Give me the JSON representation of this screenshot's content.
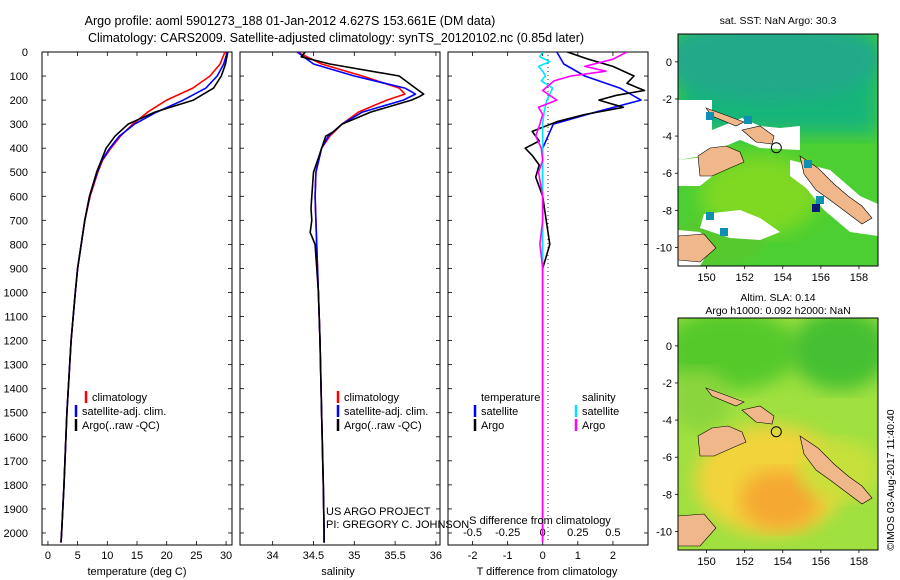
{
  "title": {
    "line1": "Argo profile: aoml 5901273_188 01-Jan-2012 4.627S 153.661E (DM data)",
    "line2": "Climatology: CARS2009. Satellite-adjusted climatology: synTS_20120102.nc (0.85d later)"
  },
  "colors": {
    "climatology": "#ff0000",
    "satellite": "#0000ff",
    "argo": "#000000",
    "argo_salinity_diff": "#ff00ff",
    "satellite_salinity_diff": "#00e5ff"
  },
  "credits": {
    "project": "US ARGO PROJECT",
    "pi": "PI: GREGORY C. JOHNSON",
    "timestamp": "©IMOS 03-Aug-2017 11:40:40"
  },
  "chart_data": [
    {
      "id": "temperature",
      "type": "line",
      "xlabel": "temperature (deg C)",
      "ylabel": "",
      "xlim": [
        -1,
        31
      ],
      "ylim": [
        2050,
        0
      ],
      "xticks": [
        0,
        5,
        10,
        15,
        20,
        25,
        30
      ],
      "yticks": [
        0,
        100,
        200,
        300,
        400,
        500,
        600,
        700,
        800,
        900,
        1000,
        1100,
        1200,
        1300,
        1400,
        1500,
        1600,
        1700,
        1800,
        1900,
        2000
      ],
      "legend": [
        "climatology",
        "satellite-adj. clim.",
        "Argo(..raw -QC)"
      ],
      "legend_position": "bottom-center",
      "series": [
        {
          "name": "climatology",
          "color_key": "climatology",
          "depth": [
            0,
            50,
            100,
            150,
            200,
            250,
            300,
            350,
            400,
            450,
            500,
            600,
            700,
            800,
            900,
            1000,
            1200,
            1500,
            1800,
            2000,
            2040
          ],
          "values": [
            29.8,
            29.0,
            27.3,
            24.4,
            20.0,
            16.8,
            14.3,
            12.2,
            10.6,
            9.2,
            8.4,
            7.1,
            6.2,
            5.6,
            5.0,
            4.6,
            3.9,
            3.2,
            2.7,
            2.3,
            2.2
          ]
        },
        {
          "name": "satellite-adj. clim.",
          "color_key": "satellite",
          "depth": [
            0,
            50,
            100,
            150,
            200,
            250,
            300,
            350,
            400,
            450,
            500,
            600,
            700,
            800,
            900,
            1000,
            1200,
            1500,
            1800,
            2000,
            2040
          ],
          "values": [
            30.2,
            29.6,
            28.5,
            26.6,
            22.8,
            18.3,
            14.6,
            12.0,
            10.4,
            9.1,
            8.3,
            7.0,
            6.2,
            5.6,
            5.0,
            4.6,
            3.9,
            3.2,
            2.7,
            2.3,
            2.2
          ]
        },
        {
          "name": "Argo(..raw -QC)",
          "color_key": "argo",
          "depth": [
            0,
            50,
            100,
            150,
            200,
            250,
            300,
            350,
            400,
            450,
            500,
            600,
            700,
            800,
            900,
            1000,
            1200,
            1500,
            1800,
            2000,
            2040
          ],
          "values": [
            30.3,
            29.9,
            29.2,
            27.9,
            24.5,
            18.0,
            13.5,
            11.3,
            9.8,
            9.0,
            8.2,
            7.0,
            6.2,
            5.6,
            5.0,
            4.6,
            3.9,
            3.2,
            2.7,
            2.3,
            2.2
          ]
        }
      ]
    },
    {
      "id": "salinity",
      "type": "line",
      "xlabel": "salinity",
      "ylabel": "",
      "xlim": [
        33.6,
        36.05
      ],
      "ylim": [
        2050,
        0
      ],
      "xticks": [
        34,
        34.5,
        35,
        35.5,
        36
      ],
      "legend": [
        "climatology",
        "satellite-adj. clim.",
        "Argo(..raw -QC)"
      ],
      "legend_position": "bottom-center",
      "series": [
        {
          "name": "climatology",
          "color_key": "climatology",
          "depth": [
            0,
            50,
            100,
            150,
            175,
            200,
            250,
            300,
            350,
            400,
            500,
            600,
            700,
            800,
            1000,
            1200,
            1500,
            1800,
            2000,
            2040
          ],
          "values": [
            34.3,
            34.6,
            35.1,
            35.55,
            35.62,
            35.4,
            35.05,
            34.85,
            34.7,
            34.6,
            34.53,
            34.52,
            34.53,
            34.54,
            34.56,
            34.58,
            34.6,
            34.62,
            34.63,
            34.63
          ]
        },
        {
          "name": "satellite-adj. clim.",
          "color_key": "satellite",
          "depth": [
            0,
            50,
            100,
            150,
            175,
            200,
            250,
            300,
            350,
            400,
            500,
            600,
            700,
            800,
            1000,
            1200,
            1500,
            1800,
            2000,
            2040
          ],
          "values": [
            34.3,
            34.5,
            35.0,
            35.62,
            35.75,
            35.6,
            35.1,
            34.85,
            34.68,
            34.6,
            34.53,
            34.52,
            34.53,
            34.54,
            34.56,
            34.58,
            34.6,
            34.62,
            34.63,
            34.63
          ]
        },
        {
          "name": "Argo(..raw -QC)",
          "color_key": "argo",
          "depth": [
            0,
            20,
            50,
            100,
            150,
            175,
            185,
            200,
            250,
            300,
            330,
            350,
            400,
            450,
            500,
            600,
            650,
            700,
            750,
            800,
            1000,
            1200,
            1500,
            1800,
            2000,
            2040
          ],
          "values": [
            34.4,
            34.35,
            34.7,
            35.55,
            35.75,
            35.85,
            35.8,
            35.7,
            35.2,
            34.85,
            34.75,
            34.65,
            34.6,
            34.55,
            34.5,
            34.48,
            34.47,
            34.48,
            34.46,
            34.52,
            34.56,
            34.58,
            34.6,
            34.62,
            34.63,
            34.63
          ]
        }
      ]
    },
    {
      "id": "differences",
      "type": "line",
      "xlabel": "T difference from climatology",
      "x2label": "S difference from climatology",
      "xlim": [
        -2.7,
        3.0
      ],
      "ylim": [
        2050,
        0
      ],
      "xticks": [
        -2,
        -1,
        0,
        1,
        2
      ],
      "x2lim": [
        -0.675,
        0.75
      ],
      "x2ticks": [
        -0.5,
        -0.25,
        0,
        0.25,
        0.5
      ],
      "legend_groups": [
        {
          "title": "temperature",
          "items": [
            "satellite",
            "Argo"
          ]
        },
        {
          "title": "salinity",
          "items": [
            "satellite",
            "Argo"
          ]
        }
      ],
      "legend_position": "center",
      "series": [
        {
          "name": "temperature satellite",
          "color_key": "satellite",
          "axis": "T",
          "depth": [
            0,
            50,
            100,
            150,
            200,
            250,
            300,
            400,
            500,
            700,
            1000,
            1500,
            2040
          ],
          "values": [
            0.4,
            0.6,
            1.2,
            2.2,
            2.8,
            1.5,
            0.3,
            0.0,
            0.0,
            0.0,
            0.0,
            0.0,
            0.0
          ]
        },
        {
          "name": "temperature Argo",
          "color_key": "argo",
          "axis": "T",
          "depth": [
            0,
            30,
            60,
            100,
            130,
            160,
            180,
            200,
            230,
            260,
            290,
            330,
            370,
            400,
            430,
            470,
            520,
            600,
            700,
            800,
            900,
            1000,
            1200,
            1500,
            1800,
            2040
          ],
          "values": [
            0.7,
            1.3,
            2.0,
            2.6,
            2.4,
            2.9,
            2.1,
            1.6,
            2.3,
            1.2,
            0.4,
            -0.3,
            -0.1,
            -0.5,
            -0.3,
            -0.1,
            -0.2,
            0.0,
            0.1,
            0.2,
            0.0,
            0.0,
            0.0,
            0.0,
            0.0,
            0.0
          ]
        },
        {
          "name": "salinity satellite",
          "color_key": "satellite_salinity_diff",
          "axis": "S",
          "depth": [
            0,
            20,
            40,
            60,
            80,
            100,
            120,
            150,
            200,
            250,
            300,
            400,
            500,
            700,
            1000,
            1500,
            2040
          ],
          "values": [
            0.0,
            -0.02,
            0.05,
            -0.03,
            0.0,
            0.02,
            -0.01,
            0.07,
            0.03,
            0.01,
            0.0,
            0.0,
            0.0,
            0.0,
            0.0,
            0.0,
            0.0
          ]
        },
        {
          "name": "salinity Argo",
          "color_key": "argo_salinity_diff",
          "axis": "S",
          "depth": [
            0,
            30,
            60,
            80,
            100,
            120,
            160,
            200,
            230,
            260,
            300,
            350,
            400,
            450,
            500,
            600,
            700,
            800,
            900,
            1000,
            1100,
            1200,
            1500,
            1800,
            2040
          ],
          "values": [
            0.6,
            0.5,
            0.3,
            0.45,
            0.2,
            0.08,
            0.0,
            0.1,
            -0.03,
            0.0,
            -0.02,
            -0.05,
            -0.01,
            0.0,
            -0.03,
            0.0,
            0.0,
            -0.02,
            0.0,
            0.0,
            0.0,
            0.0,
            0.0,
            0.0,
            0.0
          ]
        }
      ]
    },
    {
      "id": "sst_map",
      "type": "heatmap",
      "title": "sat. SST: NaN Argo: 30.3",
      "xlim": [
        148.5,
        159
      ],
      "ylim": [
        -11,
        1.5
      ],
      "xticks": [
        150,
        152,
        154,
        156,
        158
      ],
      "yticks": [
        0,
        -2,
        -4,
        -6,
        -8,
        -10
      ],
      "marker": {
        "lon": 153.661,
        "lat": -4.627
      }
    },
    {
      "id": "sla_map",
      "type": "heatmap",
      "title": "Altim. SLA: 0.14",
      "subtitle": "Argo h1000: 0.092 h2000: NaN",
      "xlim": [
        148.5,
        159
      ],
      "ylim": [
        -11,
        1.5
      ],
      "xticks": [
        150,
        152,
        154,
        156,
        158
      ],
      "yticks": [
        0,
        -2,
        -4,
        -6,
        -8,
        -10
      ],
      "marker": {
        "lon": 153.661,
        "lat": -4.627
      }
    }
  ]
}
